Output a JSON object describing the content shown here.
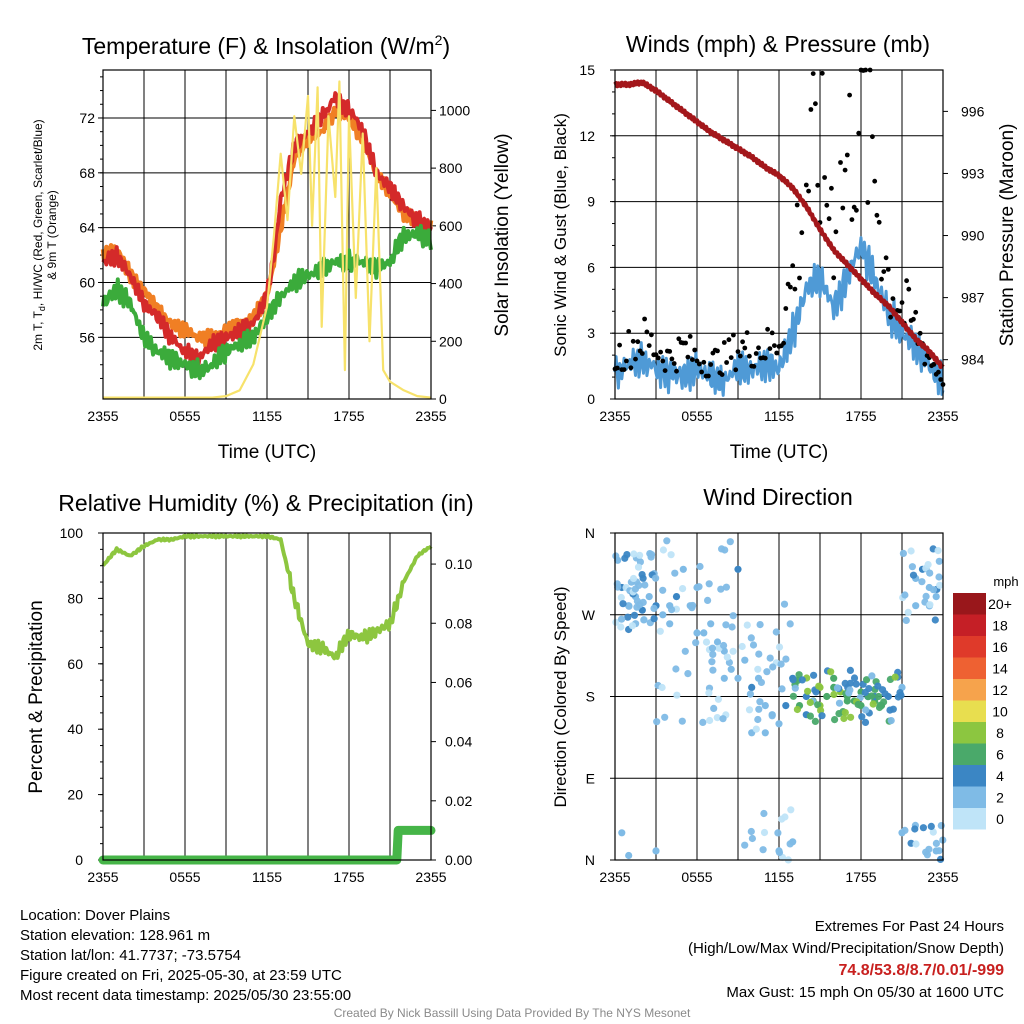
{
  "panels": {
    "temp": {
      "title_main": "Temperature (F) & Insolation (W/m",
      "title_sup": "2",
      "title_end": ")"
    },
    "winds": {
      "title": "Winds (mph) & Pressure (mb)"
    },
    "rh": {
      "title": "Relative Humidity (%) & Precipitation (in)"
    },
    "dir": {
      "title": "Wind Direction"
    }
  },
  "colors": {
    "temp": "#d42a2a",
    "windchill": "#f5a623",
    "dewpoint": "#3bab3b",
    "temp9m": "#f07f24",
    "solar": "#f7e26b",
    "wind": "#4f9ad6",
    "gust": "#000000",
    "pressure": "#a3171b",
    "rh": "#8dc63f",
    "precip": "#46b548"
  },
  "chart_data": [
    {
      "type": "line",
      "title": "Temperature (F) & Insolation (W/m2)",
      "xlabel": "Time (UTC)",
      "ylabel": "2m T, Td, HI/WC (Red, Green, Scarlet/Blue) & 9m T (Orange)",
      "ylabel_line1": "2m T, T",
      "ylabel_sub": "d",
      "ylabel_line1_end": ", HI/WC (Red, Green, Scarlet/Blue)",
      "ylabel_line2": "& 9m T (Orange)",
      "y2label": "Solar Insolation (Yellow)",
      "xticks": [
        "2355",
        "0555",
        "1155",
        "1755",
        "2355"
      ],
      "yticks": [
        "56",
        "60",
        "64",
        "68",
        "72"
      ],
      "y2ticks": [
        "0",
        "200",
        "400",
        "600",
        "800",
        "1000"
      ],
      "ylim": [
        51.5,
        75.5
      ],
      "y2lim": [
        0,
        1140
      ],
      "xlim": [
        0,
        24
      ],
      "series": [
        {
          "name": "Temperature",
          "x": [
            0,
            1,
            2,
            3,
            4,
            5,
            6,
            7,
            8,
            9,
            10,
            11,
            12,
            12.5,
            13,
            14,
            15,
            16,
            17,
            18,
            18.5,
            19,
            20,
            21,
            22,
            23,
            24
          ],
          "y": [
            61.5,
            62,
            60.5,
            58.5,
            57.5,
            56,
            55,
            54.5,
            55.5,
            56,
            56.5,
            57,
            59,
            62,
            66,
            70,
            71,
            72,
            73.5,
            72.5,
            72,
            71,
            68,
            67,
            65.5,
            64.5,
            64
          ]
        },
        {
          "name": "9m Temperature",
          "x": [
            0,
            1,
            2,
            3,
            4,
            5,
            6,
            7,
            8,
            9,
            10,
            11,
            12,
            13,
            14,
            15,
            16,
            17,
            18,
            19,
            20,
            21,
            22,
            23,
            24
          ],
          "y": [
            62,
            62.5,
            60.5,
            59.5,
            58,
            57,
            56.5,
            56,
            56,
            56.5,
            57,
            57.5,
            59,
            64,
            69,
            70.5,
            71,
            72.5,
            72,
            70.5,
            68,
            66.5,
            65,
            64.5,
            64
          ]
        },
        {
          "name": "Dew Point",
          "x": [
            0,
            1,
            2,
            3,
            4,
            5,
            6,
            7,
            8,
            9,
            10,
            11,
            12,
            13,
            14,
            15,
            16,
            17,
            18,
            19,
            20,
            21,
            22,
            23,
            24
          ],
          "y": [
            58.5,
            59.5,
            58.5,
            56,
            55,
            54.5,
            54,
            53.5,
            54,
            55,
            55.5,
            56,
            57.5,
            59,
            60,
            60.5,
            61,
            61.5,
            61.5,
            61.5,
            61,
            61.5,
            63.5,
            63.5,
            63
          ]
        },
        {
          "name": "Solar Insolation",
          "x": [
            0,
            4,
            8,
            9,
            10,
            11,
            12,
            12.5,
            13,
            13.5,
            14,
            14.5,
            15,
            15.3,
            15.7,
            16,
            16.5,
            17,
            17.3,
            17.7,
            18,
            18.5,
            19,
            19.5,
            20,
            20.5,
            21,
            22,
            23,
            24
          ],
          "y": [
            5,
            5,
            5,
            10,
            30,
            120,
            320,
            560,
            850,
            620,
            980,
            780,
            1050,
            600,
            1080,
            250,
            980,
            700,
            1100,
            100,
            980,
            350,
            920,
            200,
            800,
            100,
            60,
            30,
            10,
            5
          ]
        }
      ]
    },
    {
      "type": "scatter",
      "title": "Winds (mph) & Pressure (mb)",
      "xlabel": "Time (UTC)",
      "ylabel": "Sonic Wind & Gust (Blue, Black)",
      "y2label": "Station Pressure (Maroon)",
      "xticks": [
        "2355",
        "0555",
        "1155",
        "1755",
        "2355"
      ],
      "yticks": [
        "0",
        "3",
        "6",
        "9",
        "12",
        "15"
      ],
      "y2ticks": [
        "984",
        "987",
        "990",
        "993",
        "996"
      ],
      "ylim": [
        0,
        15
      ],
      "y2lim": [
        982.1,
        998.0
      ],
      "xlim": [
        0,
        24
      ],
      "series": [
        {
          "name": "Sonic Wind",
          "x": [
            0,
            1,
            2,
            3,
            4,
            5,
            6,
            7,
            8,
            9,
            10,
            11,
            12,
            13,
            14,
            15,
            16,
            17,
            18,
            19,
            20,
            21,
            22,
            23,
            24
          ],
          "y": [
            1.2,
            1.5,
            1.8,
            1.4,
            1.2,
            1.0,
            1.4,
            1.0,
            0.8,
            1.6,
            1.3,
            1.5,
            1.5,
            3.0,
            5.0,
            5.5,
            4.2,
            5.5,
            7.0,
            5.5,
            4.0,
            3.0,
            2.5,
            1.5,
            0.8
          ]
        },
        {
          "name": "Gust",
          "x": [
            0,
            1,
            2,
            3,
            4,
            5,
            6,
            7,
            8,
            9,
            10,
            11,
            12,
            13,
            14,
            15,
            16,
            17,
            18,
            19,
            20,
            21,
            22,
            23,
            24
          ],
          "y": [
            2.0,
            2.5,
            3.0,
            2.5,
            2.0,
            2.5,
            2.0,
            1.8,
            2.0,
            2.5,
            2.5,
            2.5,
            3.0,
            6.0,
            11.0,
            12.0,
            9.0,
            11.5,
            14.5,
            11.0,
            6.0,
            4.5,
            3.5,
            2.0,
            1.0
          ]
        },
        {
          "name": "Station Pressure",
          "x": [
            0,
            1,
            2,
            3,
            4,
            5,
            6,
            7,
            8,
            9,
            10,
            11,
            12,
            13,
            14,
            15,
            16,
            17,
            18,
            19,
            20,
            21,
            22,
            23,
            24
          ],
          "y": [
            997.3,
            997.3,
            997.4,
            997.0,
            996.5,
            996.0,
            995.5,
            995.0,
            994.6,
            994.2,
            993.8,
            993.3,
            992.9,
            992.3,
            991.4,
            990.3,
            989.3,
            988.6,
            987.9,
            987.2,
            986.6,
            985.8,
            985.0,
            984.4,
            983.6
          ]
        }
      ]
    },
    {
      "type": "line",
      "title": "Relative Humidity (%) & Precipitation (in)",
      "xlabel": "",
      "ylabel": "Percent & Precipitation",
      "xticks": [
        "2355",
        "0555",
        "1155",
        "1755",
        "2355"
      ],
      "yticks": [
        "0",
        "20",
        "40",
        "60",
        "80",
        "100"
      ],
      "y2ticks": [
        "0.00",
        "0.02",
        "0.04",
        "0.06",
        "0.08",
        "0.10"
      ],
      "ylim": [
        0,
        100
      ],
      "y2lim": [
        0,
        0.1105
      ],
      "xlim": [
        0,
        24
      ],
      "series": [
        {
          "name": "Relative Humidity",
          "x": [
            0,
            1,
            2,
            3,
            4,
            5,
            6,
            7,
            8,
            9,
            10,
            11,
            12,
            13,
            14,
            15,
            16,
            17,
            18,
            19,
            20,
            21,
            22,
            23,
            24
          ],
          "y": [
            90,
            95,
            93,
            96,
            98,
            98,
            99,
            99,
            99,
            99,
            99,
            99,
            99,
            98,
            80,
            66,
            65,
            62,
            69,
            68,
            70,
            72,
            85,
            93,
            96
          ]
        },
        {
          "name": "Precipitation",
          "x": [
            0,
            21.5,
            21.6,
            24
          ],
          "y": [
            0,
            0,
            0.01,
            0.01
          ]
        }
      ]
    },
    {
      "type": "scatter",
      "title": "Wind Direction",
      "xlabel": "",
      "ylabel": "Direction (Colored By Speed)",
      "xticks": [
        "2355",
        "0555",
        "1155",
        "1755",
        "2355"
      ],
      "yticks": [
        "N",
        "E",
        "S",
        "W",
        "N"
      ],
      "ylim": [
        0,
        360
      ],
      "xlim": [
        0,
        24
      ],
      "legend_title": "mph",
      "legend": [
        "20+",
        "18",
        "16",
        "14",
        "12",
        "10",
        "8",
        "6",
        "4",
        "2",
        "0"
      ],
      "legend_colors": [
        "#99171b",
        "#c51f26",
        "#df3a2a",
        "#ee6132",
        "#f6a34c",
        "#e8de4f",
        "#8cc640",
        "#4aa96a",
        "#3b86c4",
        "#7fbbe6",
        "#bfe4f8"
      ],
      "series": [
        {
          "name": "Direction",
          "x": [
            0.2,
            0.5,
            1,
            1.5,
            2,
            2.5,
            3,
            3.5,
            4,
            4.5,
            5,
            5.5,
            6,
            6.5,
            7,
            7.5,
            8,
            8.5,
            9,
            9.5,
            10,
            10.5,
            11,
            11.5,
            12,
            12.5,
            13,
            13.5,
            14,
            14.5,
            15,
            15.5,
            16,
            16.5,
            17,
            17.5,
            18,
            18.5,
            19,
            19.5,
            20,
            21,
            22,
            22.5,
            23,
            23.5,
            0.5,
            1,
            3,
            4,
            6,
            8,
            9,
            10,
            11,
            12,
            13,
            14,
            15,
            16,
            17,
            18,
            19,
            21,
            22,
            23.5
          ],
          "y": [
            330,
            300,
            280,
            290,
            275,
            290,
            280,
            270,
            260,
            290,
            320,
            280,
            300,
            250,
            260,
            240,
            230,
            210,
            200,
            220,
            190,
            200,
            170,
            160,
            150,
            170,
            200,
            170,
            160,
            175,
            190,
            180,
            200,
            185,
            180,
            175,
            170,
            180,
            175,
            170,
            180,
            30,
            310,
            320,
            300,
            290,
            30,
            5,
            10,
            280,
            250,
            200,
            320,
            140,
            140,
            10,
            20,
            180,
            170,
            190,
            175,
            185,
            180,
            190,
            280,
            10
          ],
          "speed": [
            1,
            3,
            2,
            1,
            4,
            2,
            3,
            1,
            2,
            3,
            1,
            1,
            2,
            1,
            1,
            2,
            1,
            1,
            2,
            1,
            3,
            1,
            2,
            1,
            1,
            3,
            4,
            5,
            4,
            6,
            7,
            6,
            5,
            7,
            6,
            5,
            6,
            4,
            5,
            6,
            4,
            1,
            2,
            3,
            2,
            1,
            1,
            1,
            1,
            1,
            1,
            1,
            3,
            1,
            1,
            1,
            1,
            4,
            7,
            6,
            5,
            6,
            4,
            1,
            2,
            1
          ]
        }
      ]
    }
  ],
  "footer": {
    "location": "Location: Dover Plains",
    "elevation": "Station elevation: 128.961 m",
    "latlon": "Station lat/lon: 41.7737; -73.5754",
    "created": "Figure created on Fri, 2025-05-30, at 23:59 UTC",
    "recent": "Most recent data timestamp: 2025/05/30 23:55:00",
    "extremes_title": "Extremes For Past 24 Hours",
    "extremes_desc": "(High/Low/Max Wind/Precipitation/Snow Depth)",
    "extremes_values": "74.8/53.8/8.7/0.01/-999",
    "max_gust": "Max Gust: 15 mph On 05/30 at 1600 UTC",
    "credit": "Created By Nick Bassill Using Data Provided By The NYS Mesonet"
  }
}
